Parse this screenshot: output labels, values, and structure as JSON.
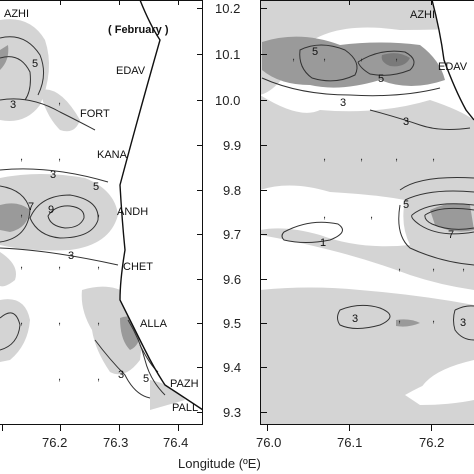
{
  "colors": {
    "shade_light": "#d4d4d4",
    "shade_dark": "#9a9a9a",
    "contour": "#333333",
    "coast": "#111111",
    "frame": "#111111",
    "background": "#ffffff"
  },
  "left_panel": {
    "month_label": "( February )",
    "x_ticks": [
      "76.2",
      "76.3",
      "76.4"
    ],
    "stations": [
      "AZHI",
      "EDAV",
      "FORT",
      "KANA",
      "ANDH",
      "CHET",
      "ALLA",
      "PAZH",
      "PALL"
    ],
    "contour_labels": [
      "5",
      "3",
      "3",
      "5",
      "7",
      "9",
      "3",
      "3",
      "5"
    ]
  },
  "right_panel": {
    "y_ticks": [
      "10.2",
      "10.1",
      "10.0",
      "9.9",
      "9.8",
      "9.7",
      "9.6",
      "9.5",
      "9.4",
      "9.3"
    ],
    "x_ticks": [
      "76.0",
      "76.1",
      "76.2"
    ],
    "stations": [
      "AZHI",
      "EDAV"
    ],
    "contour_labels": [
      "5",
      "5",
      "3",
      "3",
      "5",
      "7",
      "1",
      "3",
      "3"
    ]
  },
  "x_axis_title": "Longitude (ºE)",
  "dot_glyph": ","
}
